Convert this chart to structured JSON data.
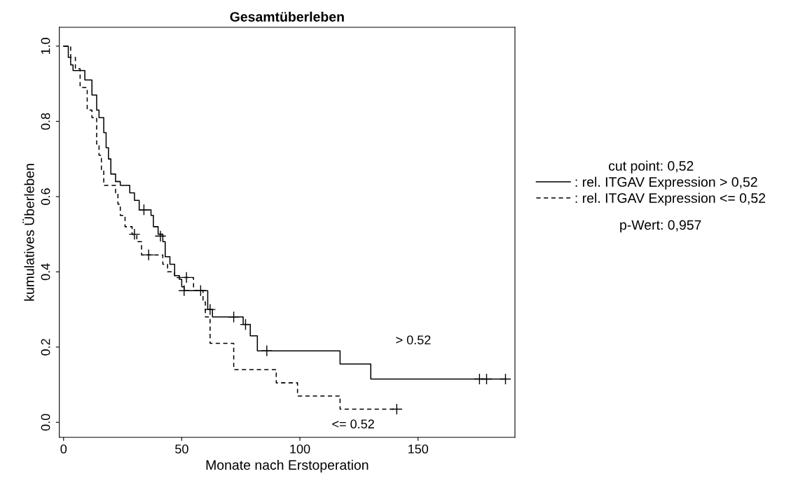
{
  "chart_data": {
    "type": "step",
    "title": "Gesamtüberleben",
    "xlabel": "Monate nach Erstoperation",
    "ylabel": "kumulatives Überleben",
    "legend_title": "cut point: 0,52",
    "legend": "right",
    "grid": false,
    "xlim": [
      -1.8,
      191
    ],
    "ylim": [
      -0.04,
      1.05
    ],
    "xticks": [
      0,
      50,
      100,
      150
    ],
    "yticks": [
      {
        "value": 0,
        "label": "0.0"
      },
      0.2,
      0.4,
      0.6,
      0.8,
      {
        "value": 1,
        "label": "1.0"
      }
    ],
    "series": [
      {
        "name": ": rel. ITGAV Expression > 0,52",
        "color": "#000000",
        "line_style": "solid",
        "x": [
          0,
          2,
          3,
          4,
          9,
          12,
          14,
          15,
          17,
          18,
          19,
          20,
          22,
          24,
          28,
          30,
          32,
          37,
          38,
          40,
          42,
          43,
          45,
          47,
          49,
          50,
          51,
          61,
          63,
          76,
          79,
          82,
          117,
          130,
          187
        ],
        "values": [
          1.0,
          0.97,
          0.95,
          0.935,
          0.91,
          0.87,
          0.83,
          0.81,
          0.77,
          0.73,
          0.7,
          0.66,
          0.64,
          0.63,
          0.61,
          0.59,
          0.565,
          0.55,
          0.52,
          0.5,
          0.48,
          0.44,
          0.42,
          0.39,
          0.38,
          0.36,
          0.35,
          0.3,
          0.28,
          0.26,
          0.23,
          0.19,
          0.155,
          0.115,
          0.115
        ]
      },
      {
        "name": ": rel. ITGAV Expression <= 0,52",
        "color": "#000000",
        "line_style": "dashed",
        "x": [
          0,
          3,
          5,
          7,
          10,
          12,
          14,
          15,
          16,
          17,
          22,
          23,
          24,
          26,
          29,
          31,
          33,
          42,
          44,
          47,
          55,
          59,
          60,
          62,
          72,
          90,
          99,
          117,
          141
        ],
        "values": [
          1.0,
          0.97,
          0.94,
          0.89,
          0.83,
          0.81,
          0.74,
          0.71,
          0.67,
          0.63,
          0.61,
          0.58,
          0.55,
          0.52,
          0.5,
          0.48,
          0.445,
          0.42,
          0.4,
          0.385,
          0.35,
          0.32,
          0.28,
          0.21,
          0.14,
          0.105,
          0.07,
          0.035,
          0.035
        ]
      },
      {
        "type": "scatter",
        "marker": "cross",
        "color": "#000000",
        "x": [
          34,
          41,
          51,
          58,
          62,
          72,
          77,
          86,
          176,
          179,
          187
        ],
        "values": [
          0.565,
          0.495,
          0.35,
          0.35,
          0.3,
          0.28,
          0.26,
          0.19,
          0.115,
          0.115,
          0.115
        ]
      },
      {
        "type": "scatter",
        "marker": "cross",
        "color": "#000000",
        "x": [
          30,
          36,
          52,
          141
        ],
        "values": [
          0.5,
          0.445,
          0.385,
          0.035
        ]
      }
    ],
    "annotations": [
      "> 0.52",
      "<= 0.52",
      "p-Wert: 0,957"
    ]
  }
}
